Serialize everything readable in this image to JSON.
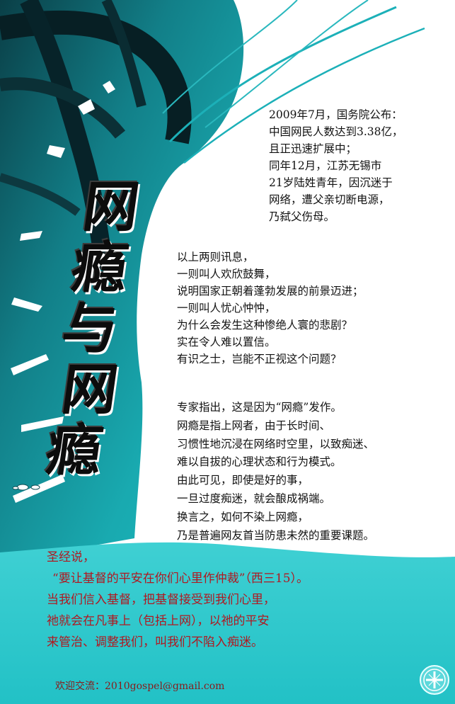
{
  "title": {
    "chars": [
      "网",
      "瘾",
      "与",
      "网",
      "瘾"
    ]
  },
  "news": {
    "lines": [
      "2009年7月，国务院公布：",
      "中国网民人数达到3.38亿，",
      "且正迅速扩展中；",
      "同年12月，江苏无锡市",
      "21岁陆姓青年，因沉迷于",
      "网络，遭父亲切断电源，",
      "乃弑父伤母。"
    ]
  },
  "reflection": {
    "lines": [
      "以上两则讯息，",
      "一则叫人欢欣鼓舞，",
      "说明国家正朝着蓬勃发展的前景迈进；",
      "一则叫人忧心忡忡，",
      "为什么会发生这种惨绝人寰的悲剧？",
      "实在令人难以置信。",
      "有识之士，岂能不正视这个问题？"
    ]
  },
  "expert": {
    "lines": [
      "专家指出，这是因为“网瘾”发作。",
      "网瘾是指上网者，由于长时间、",
      "习惯性地沉浸在网络时空里，以致痴迷、",
      "难以自拔的心理状态和行为模式。",
      "由此可见，即使是好的事，",
      "一旦过度痴迷，就会酿成祸端。",
      "换言之，如何不染上网瘾，",
      "乃是普遍网友首当防患未然的重要课题。"
    ]
  },
  "scripture": {
    "lines": [
      "圣经说，",
      "“要让基督的平安在你们心里作仲裁”（西三15）。",
      "当我们信入基督，把基督接受到我们心里，",
      "祂就会在凡事上（包括上网），以祂的平安",
      "来管治、调整我们，叫我们不陷入痴迷。"
    ]
  },
  "contact": {
    "text": "欢迎交流：2010gospel@gmail.com"
  },
  "colors": {
    "teal": "#17a7ad",
    "dark_teal": "#0a4a52",
    "black": "#0c0c0c",
    "scripture_red": "#b01820",
    "contact_red": "#8a1a1a"
  },
  "icons": {
    "emblem": "cross-emblem-icon"
  }
}
